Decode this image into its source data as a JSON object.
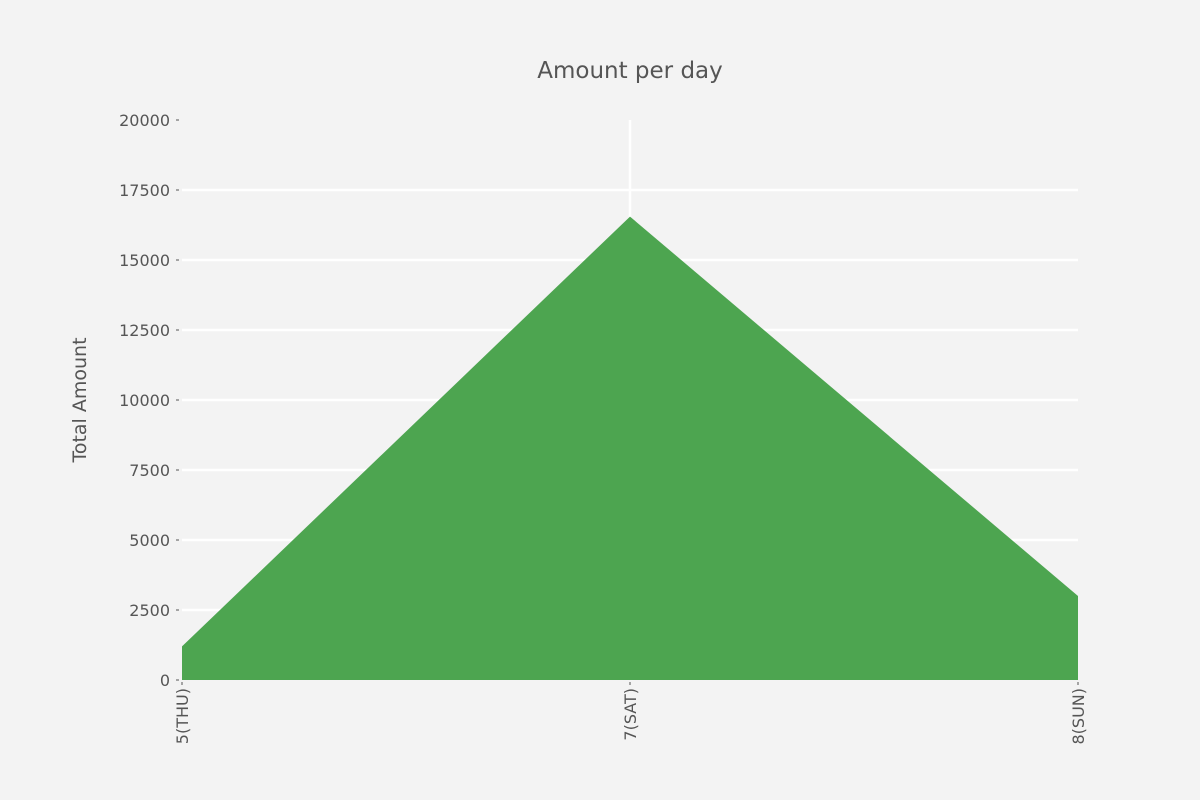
{
  "chart_data": {
    "type": "area",
    "title": "Amount per day",
    "xlabel": "",
    "ylabel": "Total Amount",
    "categories": [
      "5(THU)",
      "7(SAT)",
      "8(SUN)"
    ],
    "series": [
      {
        "values": [
          1200,
          16550,
          3000
        ],
        "color": "#43a047"
      }
    ],
    "ylim": [
      0,
      20000
    ],
    "yticks": [
      0,
      2500,
      5000,
      7500,
      10000,
      12500,
      15000,
      17500,
      20000
    ],
    "grid": true
  },
  "colors": {
    "background": "#f3f3f3",
    "grid": "#ffffff",
    "text": "#555555",
    "area": "#43a047"
  }
}
